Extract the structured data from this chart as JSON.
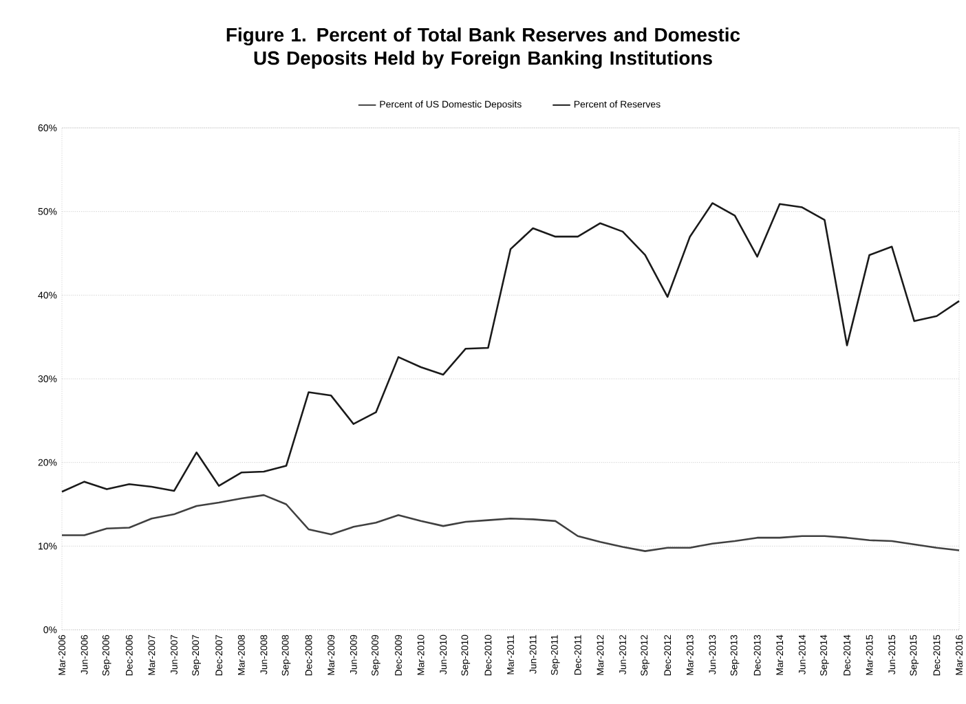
{
  "chart_data": {
    "type": "line",
    "title": "Figure 1. Percent of Total Bank Reserves and Domestic US Deposits Held by Foreign Banking Institutions",
    "categories": [
      "Mar-2006",
      "Jun-2006",
      "Sep-2006",
      "Dec-2006",
      "Mar-2007",
      "Jun-2007",
      "Sep-2007",
      "Dec-2007",
      "Mar-2008",
      "Jun-2008",
      "Sep-2008",
      "Dec-2008",
      "Mar-2009",
      "Jun-2009",
      "Sep-2009",
      "Dec-2009",
      "Mar-2010",
      "Jun-2010",
      "Sep-2010",
      "Dec-2010",
      "Mar-2011",
      "Jun-2011",
      "Sep-2011",
      "Dec-2011",
      "Mar-2012",
      "Jun-2012",
      "Sep-2012",
      "Dec-2012",
      "Mar-2013",
      "Jun-2013",
      "Sep-2013",
      "Dec-2013",
      "Mar-2014",
      "Jun-2014",
      "Sep-2014",
      "Dec-2014",
      "Mar-2015",
      "Jun-2015",
      "Sep-2015",
      "Dec-2015",
      "Mar-2016"
    ],
    "series": [
      {
        "name": "Percent of US Domestic Deposits",
        "color": "#404040",
        "values": [
          11.3,
          11.3,
          12.1,
          12.2,
          13.3,
          13.8,
          14.8,
          15.2,
          15.7,
          16.1,
          15.0,
          12.0,
          11.4,
          12.3,
          12.8,
          13.7,
          13.0,
          12.4,
          12.9,
          13.1,
          13.3,
          13.2,
          13.0,
          11.2,
          10.5,
          9.9,
          9.4,
          9.8,
          9.8,
          10.3,
          10.6,
          11.0,
          11.0,
          11.2,
          11.2,
          11.0,
          10.7,
          10.6,
          10.2,
          9.8,
          9.5
        ]
      },
      {
        "name": "Percent of Reserves",
        "color": "#1a1a1a",
        "values": [
          16.5,
          17.7,
          16.8,
          17.4,
          17.1,
          16.6,
          21.2,
          17.2,
          18.8,
          18.9,
          19.6,
          28.4,
          28.0,
          24.6,
          26.0,
          32.6,
          31.4,
          30.5,
          33.6,
          33.7,
          45.5,
          48.0,
          47.0,
          47.0,
          48.6,
          47.6,
          44.8,
          39.8,
          47.0,
          51.0,
          49.5,
          44.6,
          50.9,
          50.5,
          49.0,
          34.0,
          44.8,
          45.8,
          36.9,
          37.5,
          39.3
        ]
      }
    ],
    "ylim": [
      0,
      60
    ],
    "yticks": [
      {
        "value": 0,
        "label": "0%"
      },
      {
        "value": 10,
        "label": "10%"
      },
      {
        "value": 20,
        "label": "20%"
      },
      {
        "value": 30,
        "label": "30%"
      },
      {
        "value": 40,
        "label": "40%"
      },
      {
        "value": 50,
        "label": "50%"
      },
      {
        "value": 60,
        "label": "60%"
      }
    ],
    "grid": "y",
    "legend": "top",
    "marker": "none",
    "line_style": "solid"
  }
}
